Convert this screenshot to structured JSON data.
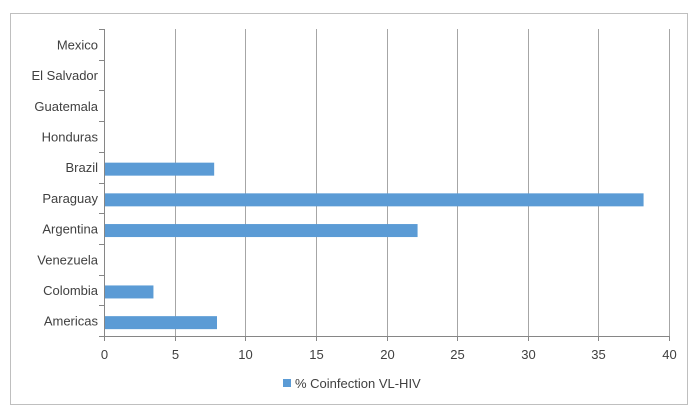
{
  "chart_data": {
    "type": "bar",
    "orientation": "horizontal",
    "categories": [
      "Mexico",
      "El Salvador",
      "Guatemala",
      "Honduras",
      "Brazil",
      "Paraguay",
      "Argentina",
      "Venezuela",
      "Colombia",
      "Americas"
    ],
    "series": [
      {
        "name": "% Coinfection VL-HIV",
        "values": [
          0,
          0,
          0,
          0,
          7.8,
          38.2,
          22.2,
          0,
          3.5,
          8.0
        ],
        "color": "#5b9bd5"
      }
    ],
    "title": "",
    "xlabel": "",
    "ylabel": "",
    "xlim": [
      0,
      40
    ],
    "xticks": [
      0,
      5,
      10,
      15,
      20,
      25,
      30,
      35,
      40
    ],
    "xtick_labels": [
      "0",
      "5",
      "10",
      "15",
      "20",
      "25",
      "30",
      "35",
      "40"
    ],
    "grid": "vertical",
    "legend": "bottom",
    "gridline_color": "#a6a6a6"
  }
}
